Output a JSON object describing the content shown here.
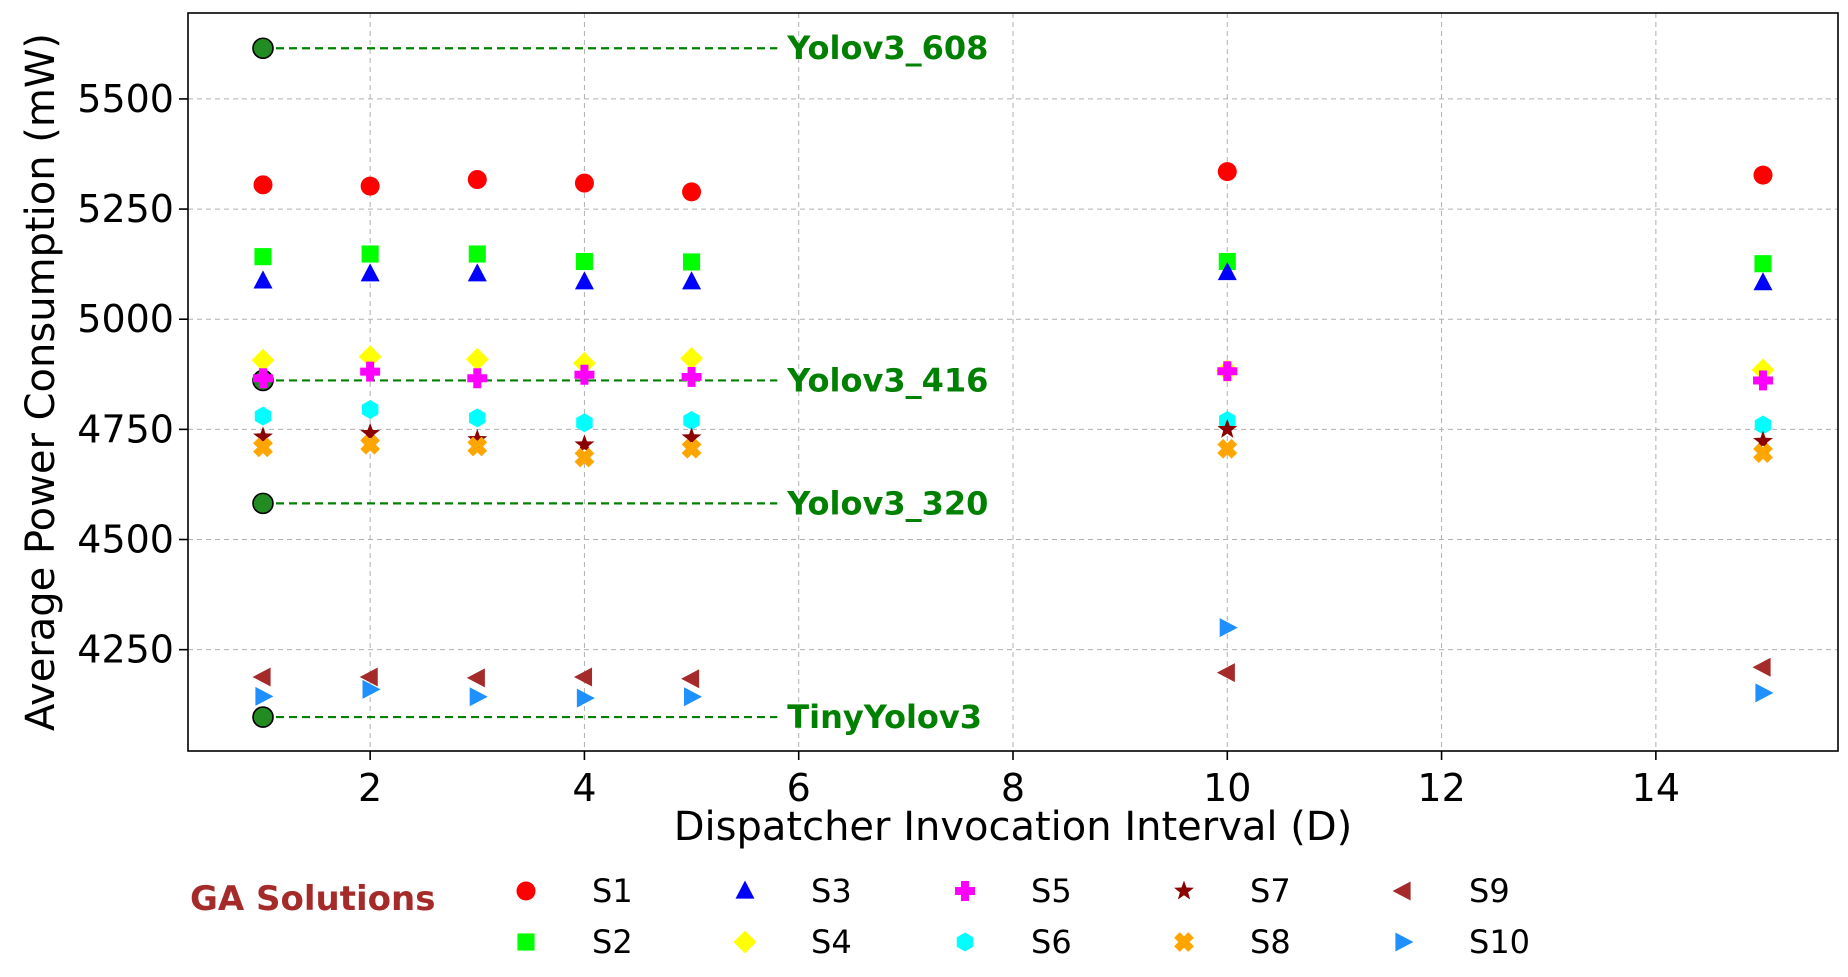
{
  "chart_data": {
    "type": "scatter",
    "title": "",
    "xlabel": "Dispatcher Invocation Interval (D)",
    "ylabel": "Average Power Consumption (mW)",
    "xlim": [
      0.3,
      15.7
    ],
    "ylim": [
      4020,
      5695
    ],
    "xticks": [
      2,
      4,
      6,
      8,
      10,
      12,
      14
    ],
    "yticks": [
      4250,
      4500,
      4750,
      5000,
      5250,
      5500
    ],
    "grid": true,
    "x": [
      1,
      2,
      3,
      4,
      5,
      10,
      15
    ],
    "series": [
      {
        "name": "S1",
        "marker": "circle",
        "color": "#ff0000",
        "values": [
          5305,
          5302,
          5317,
          5309,
          5289,
          5335,
          5327
        ]
      },
      {
        "name": "S2",
        "marker": "square",
        "color": "#00ff00",
        "values": [
          5142,
          5148,
          5148,
          5131,
          5130,
          5131,
          5126
        ]
      },
      {
        "name": "S3",
        "marker": "triangle-up",
        "color": "#0000ff",
        "values": [
          5087,
          5103,
          5103,
          5085,
          5085,
          5106,
          5083
        ]
      },
      {
        "name": "S4",
        "marker": "diamond",
        "color": "#ffff00",
        "values": [
          4907,
          4915,
          4909,
          4900,
          4911,
          4883,
          4885
        ]
      },
      {
        "name": "S5",
        "marker": "plus",
        "color": "#ff00ff",
        "values": [
          4866,
          4881,
          4866,
          4874,
          4869,
          4882,
          4861
        ]
      },
      {
        "name": "S6",
        "marker": "hexagon",
        "color": "#00ffff",
        "values": [
          4780,
          4795,
          4776,
          4765,
          4770,
          4770,
          4760
        ]
      },
      {
        "name": "S7",
        "marker": "star",
        "color": "#8b0000",
        "values": [
          4733,
          4741,
          4727,
          4715,
          4731,
          4750,
          4723
        ]
      },
      {
        "name": "S8",
        "marker": "x-filled",
        "color": "#ffa500",
        "values": [
          4709,
          4715,
          4711,
          4686,
          4706,
          4706,
          4696
        ]
      },
      {
        "name": "S9",
        "marker": "triangle-left",
        "color": "#a52a2a",
        "values": [
          4188,
          4188,
          4186,
          4188,
          4184,
          4198,
          4210
        ]
      },
      {
        "name": "S10",
        "marker": "triangle-right",
        "color": "#1e90ff",
        "values": [
          4144,
          4160,
          4143,
          4140,
          4143,
          4300,
          4152
        ]
      }
    ],
    "reference_lines": [
      {
        "label": "Yolov3_608",
        "x": 1,
        "x_end": 5.8,
        "y": 5615
      },
      {
        "label": "Yolov3_416",
        "x": 1,
        "x_end": 5.8,
        "y": 4861
      },
      {
        "label": "Yolov3_320",
        "x": 1,
        "x_end": 5.8,
        "y": 4582
      },
      {
        "label": "TinyYolov3",
        "x": 1,
        "x_end": 5.8,
        "y": 4097
      }
    ],
    "legend_title": "GA Solutions",
    "legend_location": "bottom",
    "legend_columns": 5
  },
  "colors": {
    "reference_line": "#008000",
    "reference_marker": "#228b22",
    "legend_title": "#a52a2a",
    "grid": "#b0b0b0"
  }
}
